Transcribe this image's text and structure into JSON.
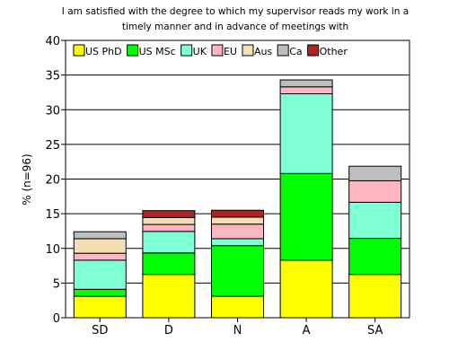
{
  "chart_data": {
    "type": "bar",
    "stacked": true,
    "title": "I am satisfied with the degree to which my supervisor reads my work in a timely manner and in advance of meetings with",
    "title_lines": [
      "I am satisfied with the degree to which my supervisor reads my work in a",
      "timely manner and in advance of meetings with"
    ],
    "xlabel": "",
    "ylabel": "% (n=96)",
    "ylim": [
      0,
      40
    ],
    "yticks": [
      "0",
      "5",
      "10",
      "15",
      "20",
      "25",
      "30",
      "35",
      "40"
    ],
    "grid": true,
    "legend_position": "top",
    "categories": [
      "SD",
      "D",
      "N",
      "A",
      "SA"
    ],
    "series": [
      {
        "name": "US PhD",
        "color": "#ffff00",
        "values": [
          3.1,
          6.25,
          3.1,
          8.3,
          6.25
        ]
      },
      {
        "name": "US MSc",
        "color": "#00ff00",
        "values": [
          1.0,
          3.1,
          7.3,
          12.5,
          5.2
        ]
      },
      {
        "name": "UK",
        "color": "#7fffd4",
        "values": [
          4.2,
          3.1,
          1.0,
          11.5,
          5.2
        ]
      },
      {
        "name": "EU",
        "color": "#ffb6c1",
        "values": [
          1.0,
          1.0,
          2.1,
          1.0,
          3.1
        ]
      },
      {
        "name": "Aus",
        "color": "#f5deb3",
        "values": [
          2.1,
          1.0,
          1.0,
          0,
          0
        ]
      },
      {
        "name": "Ca",
        "color": "#bebebe",
        "values": [
          1.0,
          0,
          0,
          1.0,
          2.1
        ]
      },
      {
        "name": "Other",
        "color": "#b22222",
        "values": [
          0,
          1.0,
          1.0,
          0,
          0
        ]
      }
    ]
  }
}
